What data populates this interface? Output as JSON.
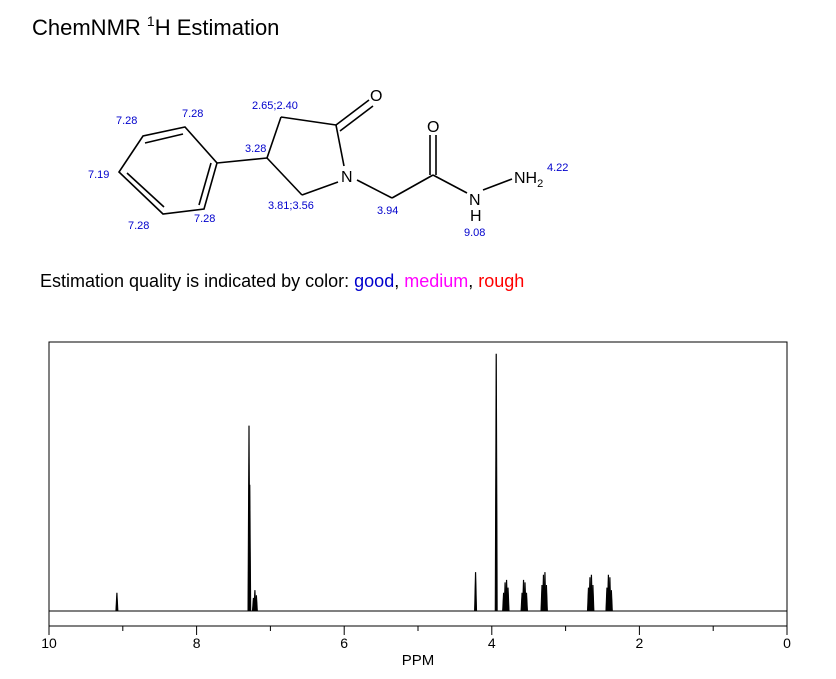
{
  "header": {
    "title_prefix": "ChemNMR ",
    "title_superscript": "1",
    "title_suffix": "H Estimation"
  },
  "molecule": {
    "atoms": {
      "oxygen": "O",
      "nitrogen": "N",
      "nh": "N",
      "h": "H",
      "nh2": "NH",
      "nh2_sub": "2"
    },
    "shift_labels": [
      {
        "id": "ph-a",
        "text": "7.28"
      },
      {
        "id": "ph-b",
        "text": "7.28"
      },
      {
        "id": "ph-c",
        "text": "7.19"
      },
      {
        "id": "ph-d",
        "text": "7.28"
      },
      {
        "id": "ph-e",
        "text": "7.28"
      },
      {
        "id": "ring-ch2-top",
        "text": "2.65;2.40"
      },
      {
        "id": "ring-ch",
        "text": "3.28"
      },
      {
        "id": "ring-ch2-bottom",
        "text": "3.81;3.56"
      },
      {
        "id": "ch2-linker",
        "text": "3.94"
      },
      {
        "id": "nh2",
        "text": "4.22"
      },
      {
        "id": "nh",
        "text": "9.08"
      }
    ],
    "label_color": "#0000cc"
  },
  "quality_note": {
    "prefix": "Estimation quality is indicated by color: ",
    "good": "good",
    "sep1": ", ",
    "medium": "medium",
    "sep2": ", ",
    "rough": "rough",
    "colors": {
      "good": "#0000cc",
      "medium": "#ff00ff",
      "rough": "#ff0000"
    }
  },
  "chart_data": {
    "type": "line",
    "xlabel": "PPM",
    "xlim": [
      10,
      0
    ],
    "x_reversed": true,
    "x_ticks": [
      "10",
      "8",
      "6",
      "4",
      "2",
      "0"
    ],
    "y_axis_visible": false,
    "grid": false,
    "peaks": [
      {
        "ppm": 9.08,
        "height": 0.07
      },
      {
        "ppm": 7.29,
        "height": 0.72
      },
      {
        "ppm": 7.28,
        "height": 0.49
      },
      {
        "ppm": 7.23,
        "height": 0.05
      },
      {
        "ppm": 7.21,
        "height": 0.08
      },
      {
        "ppm": 7.19,
        "height": 0.06
      },
      {
        "ppm": 4.22,
        "height": 0.15
      },
      {
        "ppm": 3.94,
        "height": 1.0
      },
      {
        "ppm": 3.84,
        "height": 0.07
      },
      {
        "ppm": 3.82,
        "height": 0.11
      },
      {
        "ppm": 3.8,
        "height": 0.12
      },
      {
        "ppm": 3.78,
        "height": 0.09
      },
      {
        "ppm": 3.59,
        "height": 0.07
      },
      {
        "ppm": 3.57,
        "height": 0.12
      },
      {
        "ppm": 3.55,
        "height": 0.11
      },
      {
        "ppm": 3.53,
        "height": 0.07
      },
      {
        "ppm": 3.32,
        "height": 0.1
      },
      {
        "ppm": 3.3,
        "height": 0.14
      },
      {
        "ppm": 3.28,
        "height": 0.15
      },
      {
        "ppm": 3.26,
        "height": 0.1
      },
      {
        "ppm": 2.69,
        "height": 0.09
      },
      {
        "ppm": 2.67,
        "height": 0.13
      },
      {
        "ppm": 2.65,
        "height": 0.14
      },
      {
        "ppm": 2.63,
        "height": 0.1
      },
      {
        "ppm": 2.44,
        "height": 0.09
      },
      {
        "ppm": 2.42,
        "height": 0.14
      },
      {
        "ppm": 2.4,
        "height": 0.13
      },
      {
        "ppm": 2.38,
        "height": 0.08
      }
    ]
  }
}
